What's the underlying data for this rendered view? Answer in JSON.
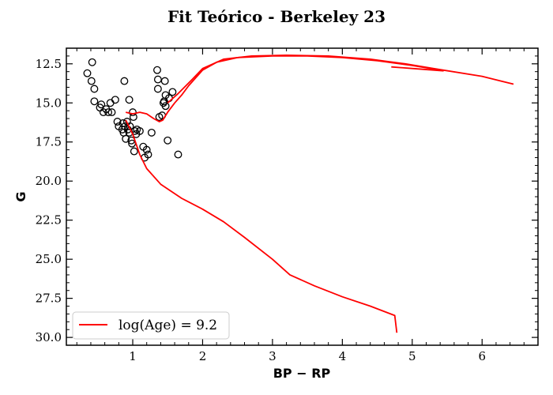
{
  "chart_data": {
    "type": "scatter",
    "title": "Fit Teórico - Berkeley 23",
    "xlabel": "BP − RP",
    "ylabel": "G",
    "xlim": [
      0.05,
      6.8
    ],
    "ylim": [
      30.5,
      11.5
    ],
    "y_inverted": true,
    "grid": false,
    "legend_position": "lower-left",
    "xticks": [
      1,
      2,
      3,
      4,
      5,
      6
    ],
    "yticks": [
      12.5,
      15.0,
      17.5,
      20.0,
      22.5,
      25.0,
      27.5,
      30.0
    ],
    "ytick_labels": [
      "12.5",
      "15.0",
      "17.5",
      "20.0",
      "22.5",
      "25.0",
      "27.5",
      "30.0"
    ],
    "series": [
      {
        "name": "",
        "kind": "scatter",
        "marker": "open-circle",
        "color": "#000000",
        "points": [
          [
            0.35,
            13.1
          ],
          [
            0.42,
            12.4
          ],
          [
            0.41,
            13.6
          ],
          [
            0.45,
            14.1
          ],
          [
            0.45,
            14.9
          ],
          [
            0.53,
            15.3
          ],
          [
            0.55,
            15.1
          ],
          [
            0.58,
            15.6
          ],
          [
            0.62,
            15.4
          ],
          [
            0.65,
            15.6
          ],
          [
            0.68,
            15.0
          ],
          [
            0.7,
            15.6
          ],
          [
            0.75,
            14.8
          ],
          [
            0.78,
            16.2
          ],
          [
            0.8,
            16.5
          ],
          [
            0.85,
            16.7
          ],
          [
            0.86,
            16.3
          ],
          [
            0.87,
            16.9
          ],
          [
            0.88,
            13.6
          ],
          [
            0.89,
            16.5
          ],
          [
            0.9,
            17.3
          ],
          [
            0.92,
            16.2
          ],
          [
            0.93,
            16.7
          ],
          [
            0.95,
            14.8
          ],
          [
            0.95,
            16.9
          ],
          [
            0.96,
            16.5
          ],
          [
            0.98,
            17.4
          ],
          [
            0.99,
            17.6
          ],
          [
            1.0,
            15.6
          ],
          [
            1.01,
            15.9
          ],
          [
            1.02,
            18.1
          ],
          [
            1.03,
            16.8
          ],
          [
            1.05,
            17.0
          ],
          [
            1.06,
            16.7
          ],
          [
            1.1,
            16.8
          ],
          [
            1.15,
            17.8
          ],
          [
            1.17,
            18.5
          ],
          [
            1.2,
            18.0
          ],
          [
            1.22,
            18.3
          ],
          [
            1.27,
            16.9
          ],
          [
            1.35,
            12.9
          ],
          [
            1.36,
            13.5
          ],
          [
            1.36,
            14.1
          ],
          [
            1.38,
            15.9
          ],
          [
            1.42,
            15.8
          ],
          [
            1.44,
            15.0
          ],
          [
            1.45,
            14.9
          ],
          [
            1.46,
            13.6
          ],
          [
            1.47,
            14.5
          ],
          [
            1.47,
            15.2
          ],
          [
            1.5,
            17.4
          ],
          [
            1.52,
            14.7
          ],
          [
            1.57,
            14.3
          ],
          [
            1.65,
            18.3
          ]
        ]
      },
      {
        "name": "log(Age) = 9.2",
        "kind": "line",
        "color": "#ff0000",
        "branches": [
          [
            [
              0.9,
              15.6
            ],
            [
              1.0,
              15.7
            ],
            [
              1.1,
              15.6
            ],
            [
              1.2,
              15.7
            ],
            [
              1.3,
              16.0
            ],
            [
              1.38,
              16.2
            ],
            [
              1.43,
              16.1
            ],
            [
              1.5,
              15.6
            ],
            [
              1.6,
              15.0
            ],
            [
              1.7,
              14.5
            ],
            [
              1.8,
              13.9
            ],
            [
              1.9,
              13.4
            ],
            [
              2.0,
              12.9
            ],
            [
              2.2,
              12.4
            ],
            [
              2.5,
              12.1
            ],
            [
              3.0,
              12.0
            ],
            [
              3.5,
              12.0
            ],
            [
              4.0,
              12.1
            ],
            [
              4.5,
              12.3
            ],
            [
              5.0,
              12.6
            ],
            [
              5.4,
              12.9
            ]
          ],
          [
            [
              1.5,
              15.0
            ],
            [
              1.65,
              14.4
            ],
            [
              1.85,
              13.5
            ],
            [
              2.0,
              12.8
            ],
            [
              2.3,
              12.2
            ],
            [
              2.7,
              12.0
            ],
            [
              3.2,
              11.95
            ],
            [
              3.8,
              12.0
            ],
            [
              4.4,
              12.2
            ],
            [
              4.9,
              12.5
            ],
            [
              5.3,
              12.8
            ],
            [
              6.0,
              13.3
            ],
            [
              6.45,
              13.8
            ]
          ],
          [
            [
              4.7,
              12.7
            ],
            [
              5.0,
              12.8
            ],
            [
              5.3,
              12.9
            ],
            [
              5.45,
              12.95
            ]
          ],
          [
            [
              0.9,
              16.1
            ],
            [
              1.0,
              17.0
            ],
            [
              1.1,
              18.3
            ],
            [
              1.2,
              19.2
            ],
            [
              1.4,
              20.2
            ],
            [
              1.7,
              21.1
            ],
            [
              2.0,
              21.8
            ],
            [
              2.3,
              22.6
            ],
            [
              2.6,
              23.6
            ],
            [
              3.0,
              25.0
            ],
            [
              3.25,
              26.0
            ],
            [
              3.6,
              26.7
            ],
            [
              4.0,
              27.4
            ],
            [
              4.4,
              28.0
            ],
            [
              4.75,
              28.6
            ],
            [
              4.78,
              29.7
            ]
          ]
        ]
      }
    ]
  }
}
